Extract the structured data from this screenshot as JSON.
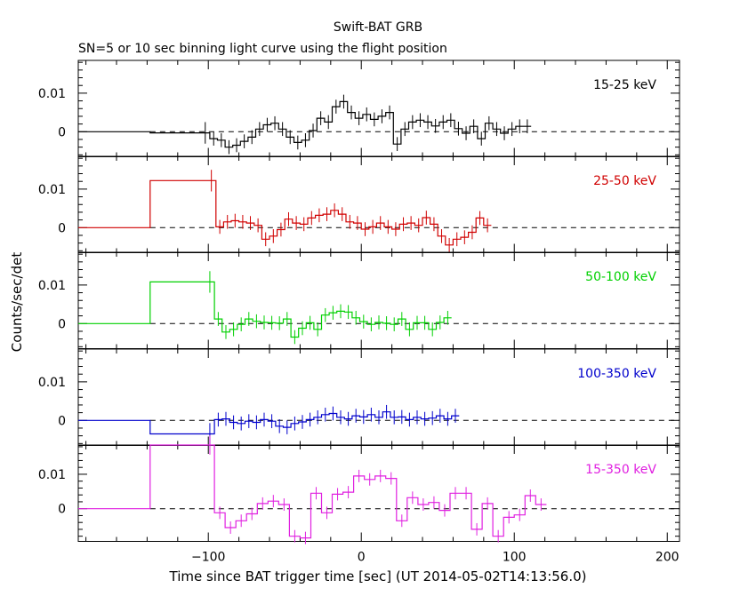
{
  "title": "Swift-BAT GRB",
  "subtitle": "SN=5 or 10 sec binning light curve using the flight position",
  "chart_data": {
    "type": "line",
    "title": "Swift-BAT GRB",
    "subtitle": "SN=5 or 10 sec binning light curve using the flight position",
    "xlabel": "Time since BAT trigger time [sec] (UT 2014-05-02T14:13:56.0)",
    "ylabel": "Counts/sec/det",
    "xlim": [
      -185,
      208
    ],
    "x_ticks": [
      "−100",
      "0",
      "100",
      "200"
    ],
    "y_ticks": [
      "0",
      "0.01"
    ],
    "grid": false,
    "reference_line": 0,
    "panels": [
      {
        "name": "15-25 keV",
        "color": "#000000",
        "ylim": [
          -0.0065,
          0.0185
        ],
        "pre_bins": [
          [
            -185,
            -138,
            0
          ],
          [
            -138,
            -99,
            -0.0003
          ]
        ],
        "post_start": -99,
        "post_step": 5,
        "values": [
          -0.0018,
          -0.0022,
          -0.004,
          -0.0035,
          -0.0025,
          -0.0014,
          0.0007,
          0.0018,
          0.0022,
          0.0007,
          -0.0014,
          -0.0028,
          -0.0022,
          0.0003,
          0.0035,
          0.0025,
          0.0065,
          0.0078,
          0.005,
          0.0035,
          0.0045,
          0.0032,
          0.004,
          0.005,
          -0.0032,
          0.0007,
          0.0025,
          0.003,
          0.0025,
          0.0015,
          0.0025,
          0.003,
          0.0008,
          -0.0004,
          0.0014,
          -0.0018,
          0.0022,
          0.0007,
          -0.0004,
          0.0007,
          0.0014,
          0.0014
        ]
      },
      {
        "name": "25-50 keV",
        "color": "#d00000",
        "ylim": [
          -0.0065,
          0.0185
        ],
        "pre_bins": [
          [
            -185,
            -138,
            0
          ],
          [
            -138,
            -95,
            0.0122
          ]
        ],
        "post_start": -95,
        "post_step": 5,
        "values": [
          0.0002,
          0.0015,
          0.0018,
          0.0015,
          0.0012,
          0.0006,
          -0.003,
          -0.0022,
          -0.0005,
          0.0022,
          0.0012,
          0.0009,
          0.0025,
          0.0032,
          0.0035,
          0.0045,
          0.0035,
          0.0015,
          0.0012,
          -0.0004,
          0.0002,
          0.0012,
          0.0002,
          -0.0004,
          0.0009,
          0.0012,
          0.0006,
          0.0026,
          0.0009,
          -0.0022,
          -0.0045,
          -0.003,
          -0.0025,
          -0.0012,
          0.0025,
          0.0006
        ]
      },
      {
        "name": "50-100 keV",
        "color": "#00d000",
        "ylim": [
          -0.0065,
          0.0185
        ],
        "pre_bins": [
          [
            -185,
            -138,
            0
          ],
          [
            -138,
            -96,
            0.0108
          ]
        ],
        "post_start": -96,
        "post_step": 5,
        "values": [
          0.0012,
          -0.0022,
          -0.0015,
          -0.0002,
          0.0012,
          0.0006,
          0.0003,
          0.0002,
          0.0001,
          0.0012,
          -0.0035,
          -0.0012,
          0.0002,
          -0.0015,
          0.0022,
          0.0028,
          0.0032,
          0.003,
          0.0015,
          0.0005,
          -0.0002,
          0.0003,
          0.0001,
          -0.0002,
          0.0012,
          -0.0015,
          0.0002,
          0.0002,
          -0.0015,
          0.0003,
          0.0015
        ]
      },
      {
        "name": "100-350 keV",
        "color": "#0000cc",
        "ylim": [
          -0.0065,
          0.0185
        ],
        "pre_bins": [
          [
            -185,
            -138,
            0
          ],
          [
            -138,
            -96,
            -0.0035
          ]
        ],
        "post_start": -96,
        "post_step": 5,
        "values": [
          0.0002,
          0.0004,
          -0.0005,
          -0.0008,
          -0.0002,
          -0.0005,
          0.0002,
          -0.0002,
          -0.0015,
          -0.0018,
          -0.0008,
          -0.0004,
          0.0002,
          0.0008,
          0.0015,
          0.0018,
          0.0008,
          0.0004,
          0.0012,
          0.0009,
          0.0015,
          0.0008,
          0.0022,
          0.0008,
          0.0009,
          0.0002,
          0.0008,
          0.0004,
          0.0006,
          0.0012,
          0.0004,
          0.0012
        ]
      },
      {
        "name": "15-350 keV",
        "color": "#e020e0",
        "ylim": [
          -0.0095,
          0.0185
        ],
        "pre_bins": [
          [
            -185,
            -138,
            0
          ],
          [
            -138,
            -96,
            0.0185
          ]
        ],
        "post_start": -96,
        "post_step": 7,
        "values": [
          -0.0012,
          -0.0055,
          -0.0035,
          -0.0015,
          0.0015,
          0.0022,
          0.0012,
          -0.008,
          -0.0085,
          0.0045,
          -0.0012,
          0.0042,
          0.0048,
          0.0095,
          0.0085,
          0.0095,
          0.0088,
          -0.0035,
          0.0032,
          0.0012,
          0.0018,
          -0.0005,
          0.0045,
          0.0045,
          -0.006,
          0.0015,
          -0.008,
          -0.0025,
          -0.0018,
          0.0038,
          0.0012
        ]
      }
    ]
  }
}
